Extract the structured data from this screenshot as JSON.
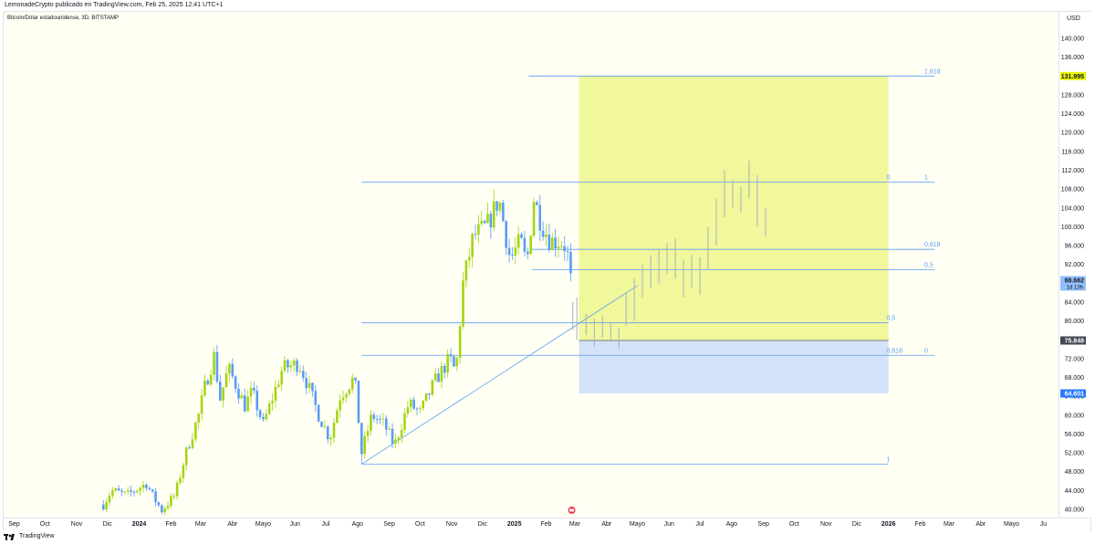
{
  "header": {
    "publisher": "LemonadeCrypto publicado en TradingView.com, Feb 25, 2025 12:41 UTC+1"
  },
  "chart_header": {
    "symbol": "Bitcoin/Dólar estadounidense, 3D, BITSTAMP",
    "currency": "USD"
  },
  "footer": {
    "brand": "TradingView"
  },
  "colors": {
    "bull": "#a5d414",
    "bear": "#5b9cf6",
    "target_zone": "#f1f79b",
    "stop_zone": "#d3e2f8",
    "fib_line": "#5b9cf6",
    "marker_yellow": "#e9f505",
    "marker_blue": "#2979ff",
    "marker_gray": "#434651"
  },
  "chart_data": {
    "type": "candlestick",
    "y_axis": {
      "min": 40000,
      "max": 140000,
      "tick_labels": [
        "140.000",
        "136.000",
        "132.000",
        "128.000",
        "124.000",
        "120.000",
        "116.000",
        "112.000",
        "108.000",
        "104.000",
        "100.000",
        "96.000",
        "92.000",
        "88.000",
        "84.000",
        "80.000",
        "76.000",
        "72.000",
        "68.000",
        "64.000",
        "60.000",
        "56.000",
        "52.000",
        "48.000",
        "44.000",
        "40.000"
      ]
    },
    "x_axis": {
      "labels": [
        {
          "text": "Sep",
          "date": "2023-09-01"
        },
        {
          "text": "Oct",
          "date": "2023-10-01"
        },
        {
          "text": "Nov",
          "date": "2023-11-01"
        },
        {
          "text": "Dic",
          "date": "2023-12-01"
        },
        {
          "text": "2024",
          "date": "2024-01-01",
          "bold": true
        },
        {
          "text": "Feb",
          "date": "2024-02-01"
        },
        {
          "text": "Mar",
          "date": "2024-03-01"
        },
        {
          "text": "Abr",
          "date": "2024-04-01"
        },
        {
          "text": "Mayo",
          "date": "2024-05-01"
        },
        {
          "text": "Jun",
          "date": "2024-06-01"
        },
        {
          "text": "Jul",
          "date": "2024-07-01"
        },
        {
          "text": "Ago",
          "date": "2024-08-01"
        },
        {
          "text": "Sep",
          "date": "2024-09-01"
        },
        {
          "text": "Oct",
          "date": "2024-10-01"
        },
        {
          "text": "Nov",
          "date": "2024-11-01"
        },
        {
          "text": "Dic",
          "date": "2024-12-01"
        },
        {
          "text": "2025",
          "date": "2025-01-01",
          "bold": true
        },
        {
          "text": "Feb",
          "date": "2025-02-01"
        },
        {
          "text": "Mar",
          "date": "2025-03-01"
        },
        {
          "text": "Abr",
          "date": "2025-04-01"
        },
        {
          "text": "Mayo",
          "date": "2025-05-01"
        },
        {
          "text": "Jun",
          "date": "2025-06-01"
        },
        {
          "text": "Jul",
          "date": "2025-07-01"
        },
        {
          "text": "Ago",
          "date": "2025-08-01"
        },
        {
          "text": "Sep",
          "date": "2025-09-01"
        },
        {
          "text": "Oct",
          "date": "2025-10-01"
        },
        {
          "text": "Nov",
          "date": "2025-11-01"
        },
        {
          "text": "Dic",
          "date": "2025-12-01"
        },
        {
          "text": "2026",
          "date": "2026-01-01",
          "bold": true
        },
        {
          "text": "Feb",
          "date": "2026-02-01"
        },
        {
          "text": "Mar",
          "date": "2026-03-01"
        },
        {
          "text": "Abr",
          "date": "2026-04-01"
        },
        {
          "text": "Mayo",
          "date": "2026-05-01"
        },
        {
          "text": "Ju",
          "date": "2026-06-01"
        }
      ]
    },
    "price_path": [
      [
        "2023-11-27",
        41000
      ],
      [
        "2023-12-05",
        44000
      ],
      [
        "2023-12-20",
        43000
      ],
      [
        "2024-01-08",
        45500
      ],
      [
        "2024-01-15",
        42500
      ],
      [
        "2024-01-23",
        39800
      ],
      [
        "2024-02-05",
        43000
      ],
      [
        "2024-02-15",
        51500
      ],
      [
        "2024-02-28",
        60000
      ],
      [
        "2024-03-05",
        66000
      ],
      [
        "2024-03-14",
        72500
      ],
      [
        "2024-03-20",
        63500
      ],
      [
        "2024-03-28",
        70000
      ],
      [
        "2024-04-13",
        62000
      ],
      [
        "2024-04-20",
        65000
      ],
      [
        "2024-05-01",
        58000
      ],
      [
        "2024-05-20",
        70000
      ],
      [
        "2024-06-05",
        71000
      ],
      [
        "2024-06-15",
        65500
      ],
      [
        "2024-06-24",
        60000
      ],
      [
        "2024-07-05",
        55000
      ],
      [
        "2024-07-15",
        64000
      ],
      [
        "2024-07-29",
        68000
      ],
      [
        "2024-08-05",
        52000
      ],
      [
        "2024-08-15",
        60000
      ],
      [
        "2024-08-27",
        58000
      ],
      [
        "2024-09-06",
        53500
      ],
      [
        "2024-09-20",
        62500
      ],
      [
        "2024-10-01",
        60500
      ],
      [
        "2024-10-15",
        67000
      ],
      [
        "2024-10-30",
        72000
      ],
      [
        "2024-11-05",
        69000
      ],
      [
        "2024-11-12",
        88000
      ],
      [
        "2024-11-22",
        98000
      ],
      [
        "2024-12-05",
        100000
      ],
      [
        "2024-12-17",
        106000
      ],
      [
        "2024-12-28",
        93000
      ],
      [
        "2025-01-07",
        97000
      ],
      [
        "2025-01-13",
        92000
      ],
      [
        "2025-01-20",
        106000
      ],
      [
        "2025-01-27",
        101000
      ],
      [
        "2025-02-05",
        97000
      ],
      [
        "2025-02-15",
        97000
      ],
      [
        "2025-02-21",
        95500
      ],
      [
        "2025-02-25",
        88700
      ]
    ],
    "projection": [
      {
        "date": "2025-02-27",
        "high": 84000,
        "low": 78000
      },
      {
        "date": "2025-03-03",
        "high": 85000,
        "low": 76000
      },
      {
        "date": "2025-03-12",
        "high": 81500,
        "low": 77000
      },
      {
        "date": "2025-03-20",
        "high": 80500,
        "low": 74500
      },
      {
        "date": "2025-03-28",
        "high": 81000,
        "low": 76500
      },
      {
        "date": "2025-04-05",
        "high": 79500,
        "low": 76000
      },
      {
        "date": "2025-04-13",
        "high": 78500,
        "low": 74000
      },
      {
        "date": "2025-04-20",
        "high": 86000,
        "low": 79000
      },
      {
        "date": "2025-04-28",
        "high": 89000,
        "low": 80000
      },
      {
        "date": "2025-05-06",
        "high": 92000,
        "low": 85000
      },
      {
        "date": "2025-05-14",
        "high": 94000,
        "low": 87000
      },
      {
        "date": "2025-05-22",
        "high": 95000,
        "low": 88000
      },
      {
        "date": "2025-05-30",
        "high": 96500,
        "low": 90000
      },
      {
        "date": "2025-06-07",
        "high": 97500,
        "low": 89000
      },
      {
        "date": "2025-06-15",
        "high": 93000,
        "low": 85000
      },
      {
        "date": "2025-06-23",
        "high": 94000,
        "low": 87000
      },
      {
        "date": "2025-07-01",
        "high": 93500,
        "low": 85500
      },
      {
        "date": "2025-07-09",
        "high": 100000,
        "low": 91000
      },
      {
        "date": "2025-07-17",
        "high": 106000,
        "low": 96000
      },
      {
        "date": "2025-07-25",
        "high": 112000,
        "low": 102000
      },
      {
        "date": "2025-08-02",
        "high": 110000,
        "low": 104000
      },
      {
        "date": "2025-08-10",
        "high": 108500,
        "low": 103000
      },
      {
        "date": "2025-08-18",
        "high": 114000,
        "low": 106000
      },
      {
        "date": "2025-08-26",
        "high": 111000,
        "low": 100000
      },
      {
        "date": "2025-09-03",
        "high": 104000,
        "low": 98000
      }
    ],
    "position": {
      "start": "2025-03-05",
      "end": "2026-01-01",
      "entry": 75848,
      "target": 131995,
      "stop": 64601
    },
    "fib_levels": [
      {
        "price": 131995,
        "start": "2025-01-15",
        "end": "2026-02-15",
        "label": "1,618",
        "label_at": "2026-02-05"
      },
      {
        "price": 109500,
        "start": "2024-08-05",
        "end": "2026-02-15",
        "label": "1",
        "label_at": "2026-02-05"
      },
      {
        "price": 109500,
        "label": "0",
        "label_at": "2025-12-30"
      },
      {
        "price": 95200,
        "start": "2025-01-18",
        "end": "2026-02-15",
        "label": "0,618",
        "label_at": "2026-02-05"
      },
      {
        "price": 90900,
        "start": "2025-01-18",
        "end": "2026-02-15",
        "label": "0,5",
        "label_at": "2026-02-05"
      },
      {
        "price": 79600,
        "start": "2024-08-05",
        "end": "2026-01-01",
        "label": "0,5",
        "label_at": "2025-12-30"
      },
      {
        "price": 72700,
        "start": "2024-08-05",
        "end": "2026-02-15",
        "label": "0,618",
        "label_at": "2025-12-30"
      },
      {
        "price": 72700,
        "label": "0",
        "label_at": "2026-02-05"
      },
      {
        "price": 49600,
        "start": "2024-08-05",
        "end": "2026-01-01",
        "label": "1",
        "label_at": "2025-12-30"
      }
    ],
    "trendline": [
      {
        "date": "2024-08-05",
        "price": 49600
      },
      {
        "date": "2025-05-01",
        "price": 87500
      }
    ],
    "price_markers": [
      {
        "price": 131995,
        "text": "131.995",
        "style": "yellow"
      },
      {
        "price": 88662,
        "text": "88.662",
        "sub": "1d 13h",
        "style": "lightblue"
      },
      {
        "price": 75848,
        "text": "75.848",
        "style": "gray"
      },
      {
        "price": 64601,
        "text": "64.601",
        "style": "blue"
      }
    ],
    "event_icon_date": "2025-02-26"
  }
}
